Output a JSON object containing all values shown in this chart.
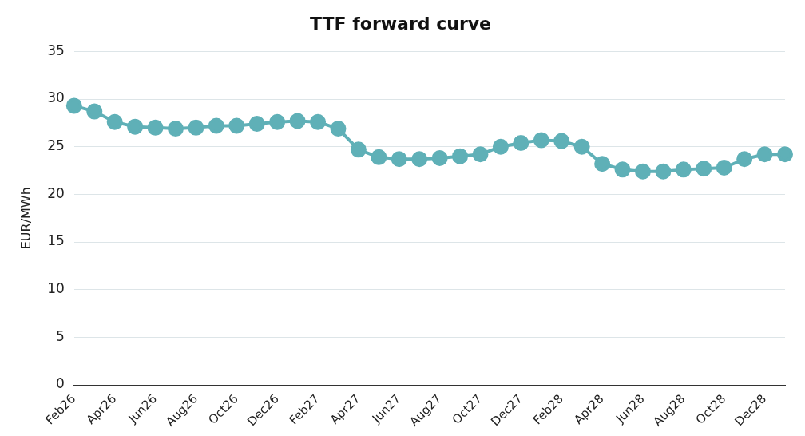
{
  "chart_data": {
    "type": "line",
    "title": "TTF forward curve",
    "ylabel": "EUR/MWh",
    "categories": [
      "Feb26",
      null,
      "Apr26",
      null,
      "Jun26",
      null,
      "Aug26",
      null,
      "Oct26",
      null,
      "Dec26",
      null,
      "Feb27",
      null,
      "Apr27",
      null,
      "Jun27",
      null,
      "Aug27",
      null,
      "Oct27",
      null,
      "Dec27",
      null,
      "Feb28",
      null,
      "Apr28",
      null,
      "Jun28",
      null,
      "Aug28",
      null,
      "Oct28",
      null,
      "Dec28",
      null
    ],
    "series": [
      {
        "color": "#5fb0b7",
        "values": [
          29.3,
          28.7,
          27.6,
          27.1,
          27.0,
          26.9,
          27.0,
          27.2,
          27.2,
          27.4,
          27.6,
          27.7,
          27.6,
          26.9,
          24.7,
          23.9,
          23.7,
          23.7,
          23.8,
          24.0,
          24.2,
          25.0,
          25.4,
          25.7,
          25.6,
          25.0,
          23.2,
          22.6,
          22.4,
          22.4,
          22.6,
          22.7,
          22.8,
          23.7,
          24.2,
          24.2
        ]
      }
    ],
    "ylim": [
      0,
      35
    ],
    "yticks": [
      0,
      5,
      10,
      15,
      20,
      25,
      30,
      35
    ],
    "grid": "y",
    "legend": false,
    "marker": "circle",
    "line_style": "solid"
  }
}
